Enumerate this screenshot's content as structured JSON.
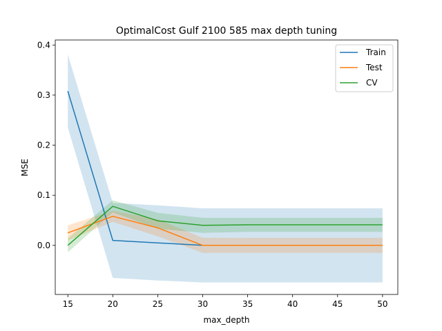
{
  "chart_data": {
    "type": "line",
    "title": "OptimalCost Gulf 2100 585 max depth tuning",
    "xlabel": "max_depth",
    "ylabel": "MSE",
    "x": [
      15,
      20,
      25,
      30,
      35,
      40,
      45,
      50
    ],
    "xlim": [
      13.6,
      51.7
    ],
    "ylim": [
      -0.098,
      0.41
    ],
    "xticks": [
      15,
      20,
      25,
      30,
      35,
      40,
      45,
      50
    ],
    "yticks": [
      0.0,
      0.1,
      0.2,
      0.3,
      0.4
    ],
    "ytick_labels": [
      "0.0",
      "0.1",
      "0.2",
      "0.3",
      "0.4"
    ],
    "grid": false,
    "legend_position": "top-right",
    "series": [
      {
        "name": "Train",
        "color": "#1f77b4",
        "values": [
          0.308,
          0.01,
          0.005,
          0.0,
          0.0,
          0.0,
          0.0,
          0.0
        ],
        "lower": [
          0.235,
          -0.065,
          -0.07,
          -0.074,
          -0.074,
          -0.074,
          -0.074,
          -0.074
        ],
        "upper": [
          0.381,
          0.085,
          0.08,
          0.074,
          0.074,
          0.074,
          0.074,
          0.074
        ]
      },
      {
        "name": "Test",
        "color": "#ff7f0e",
        "values": [
          0.025,
          0.058,
          0.035,
          0.0,
          0.0,
          0.0,
          0.0,
          0.0
        ],
        "lower": [
          0.01,
          0.047,
          0.018,
          -0.015,
          -0.015,
          -0.015,
          -0.015,
          -0.015
        ],
        "upper": [
          0.04,
          0.069,
          0.052,
          0.015,
          0.015,
          0.015,
          0.015,
          0.015
        ]
      },
      {
        "name": "CV",
        "color": "#2ca02c",
        "values": [
          0.0,
          0.078,
          0.049,
          0.04,
          0.041,
          0.041,
          0.041,
          0.041
        ],
        "lower": [
          -0.014,
          0.066,
          0.033,
          0.025,
          0.027,
          0.027,
          0.027,
          0.027
        ],
        "upper": [
          0.014,
          0.09,
          0.065,
          0.055,
          0.055,
          0.055,
          0.055,
          0.055
        ]
      }
    ]
  }
}
